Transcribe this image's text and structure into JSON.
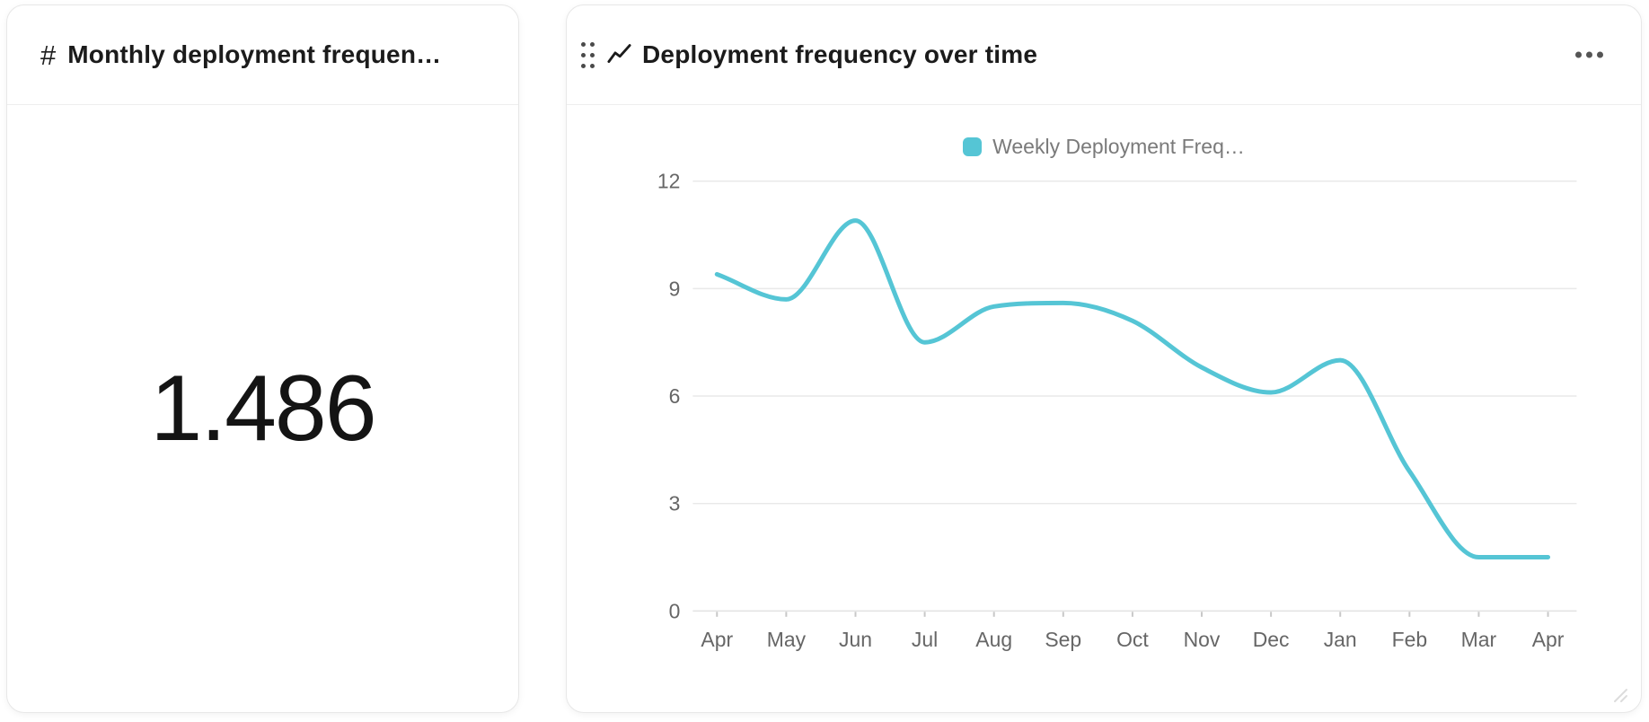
{
  "cards": {
    "kpi": {
      "icon": "number-hash-icon",
      "icon_glyph": "#",
      "title": "Monthly deployment frequen…",
      "value": "1.486"
    },
    "chart": {
      "drag_icon": "drag-handle-dots",
      "type_icon": "line-chart-icon",
      "title": "Deployment frequency over time",
      "menu_icon": "ellipsis-horizontal",
      "resize_icon": "resize-corner"
    }
  },
  "chart_data": {
    "type": "line",
    "title": "Deployment frequency over time",
    "categories": [
      "Apr",
      "May",
      "Jun",
      "Jul",
      "Aug",
      "Sep",
      "Oct",
      "Nov",
      "Dec",
      "Jan",
      "Feb",
      "Mar",
      "Apr"
    ],
    "series": [
      {
        "name": "Weekly Deployment Freq…",
        "color": "#55c5d5",
        "values": [
          9.4,
          8.7,
          10.9,
          7.5,
          8.5,
          8.6,
          8.1,
          6.8,
          6.1,
          7.0,
          3.9,
          1.5,
          1.5
        ]
      }
    ],
    "xlabel": "",
    "ylabel": "",
    "ylim": [
      0,
      12
    ],
    "y_ticks": [
      0,
      3,
      6,
      9,
      12
    ],
    "grid": true,
    "legend_position": "top",
    "curve": "monotone"
  },
  "colors": {
    "accent_teal": "#55c5d5",
    "grid_line": "#e9e9e9",
    "axis_line": "#e2e2e2",
    "tick_mark": "#c8c8c8",
    "axis_label": "#666666",
    "legend_text": "#7a7a7a",
    "title_text": "#1b1b1b",
    "card_border": "#e7e7e7"
  }
}
